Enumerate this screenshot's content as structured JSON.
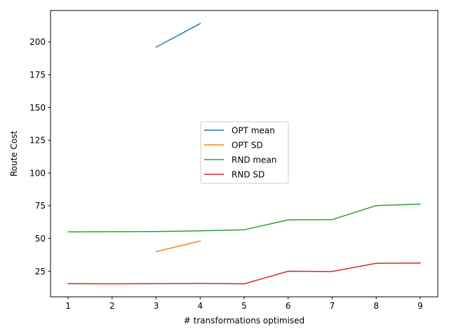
{
  "chart_data": {
    "type": "line",
    "title": "",
    "xlabel": "# transformations optimised",
    "ylabel": "Route Cost",
    "x_ticks": [
      1,
      2,
      3,
      4,
      5,
      6,
      7,
      8,
      9
    ],
    "y_ticks": [
      25,
      50,
      75,
      100,
      125,
      150,
      175,
      200
    ],
    "xlim": [
      0.6,
      9.4
    ],
    "ylim": [
      5.5,
      224
    ],
    "grid": false,
    "legend_position": "center",
    "series": [
      {
        "name": "OPT mean",
        "color": "#1f77b4",
        "x": [
          3,
          4
        ],
        "y": [
          196,
          214
        ]
      },
      {
        "name": "OPT SD",
        "color": "#ff7f0e",
        "x": [
          3,
          4
        ],
        "y": [
          40,
          48
        ]
      },
      {
        "name": "RND mean",
        "color": "#2ca02c",
        "x": [
          1,
          2,
          3,
          4,
          5,
          6,
          7,
          8,
          9
        ],
        "y": [
          55,
          55.2,
          55.3,
          55.8,
          56.6,
          64.2,
          64.4,
          75.1,
          76.3
        ]
      },
      {
        "name": "RND SD",
        "color": "#d62728",
        "x": [
          1,
          2,
          3,
          4,
          5,
          6,
          7,
          8,
          9
        ],
        "y": [
          15.5,
          15.4,
          15.5,
          15.7,
          15.4,
          25,
          24.8,
          31.1,
          31.3
        ]
      }
    ]
  }
}
